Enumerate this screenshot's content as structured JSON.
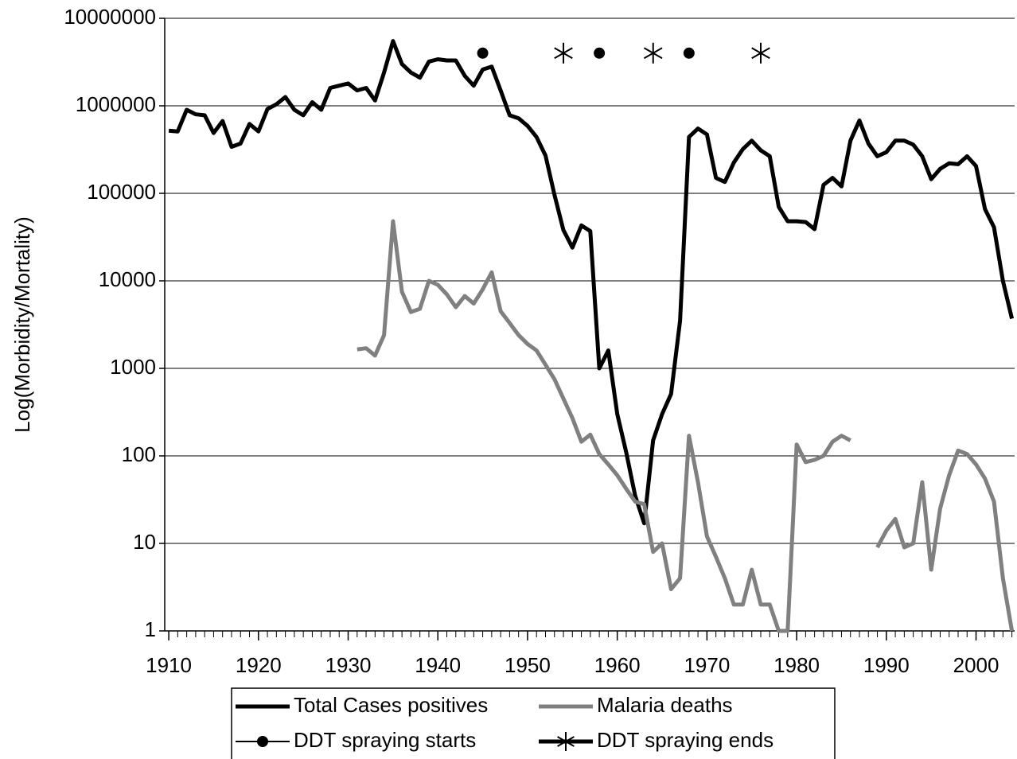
{
  "chart_data": {
    "type": "line",
    "y_label": "Log(Morbidity/Mortality)",
    "x": [
      1910,
      1911,
      1912,
      1913,
      1914,
      1915,
      1916,
      1917,
      1918,
      1919,
      1920,
      1921,
      1922,
      1923,
      1924,
      1925,
      1926,
      1927,
      1928,
      1929,
      1930,
      1931,
      1932,
      1933,
      1934,
      1935,
      1936,
      1937,
      1938,
      1939,
      1940,
      1941,
      1942,
      1943,
      1944,
      1945,
      1946,
      1947,
      1948,
      1949,
      1950,
      1951,
      1952,
      1953,
      1954,
      1955,
      1956,
      1957,
      1958,
      1959,
      1960,
      1961,
      1962,
      1963,
      1964,
      1965,
      1966,
      1967,
      1968,
      1969,
      1970,
      1971,
      1972,
      1973,
      1974,
      1975,
      1976,
      1977,
      1978,
      1979,
      1980,
      1981,
      1982,
      1983,
      1984,
      1985,
      1986,
      1987,
      1988,
      1989,
      1990,
      1991,
      1992,
      1993,
      1994,
      1995,
      1996,
      1997,
      1998,
      1999,
      2000,
      2001,
      2002,
      2003,
      2004
    ],
    "series": [
      {
        "name": "Total Cases positives",
        "color": "#000000",
        "values": [
          520000,
          510000,
          900000,
          800000,
          780000,
          490000,
          670000,
          340000,
          370000,
          620000,
          510000,
          920000,
          1040000,
          1260000,
          900000,
          780000,
          1100000,
          900000,
          1600000,
          1700000,
          1800000,
          1500000,
          1600000,
          1150000,
          2400000,
          5500000,
          3000000,
          2400000,
          2100000,
          3200000,
          3400000,
          3300000,
          3300000,
          2200000,
          1700000,
          2600000,
          2800000,
          1500000,
          780000,
          720000,
          590000,
          440000,
          270000,
          96000,
          38000,
          24000,
          43000,
          37000,
          1000,
          1600,
          300,
          110,
          35,
          17,
          150,
          300,
          510,
          3500,
          440000,
          550000,
          470000,
          150000,
          135000,
          225000,
          320000,
          400000,
          310000,
          265000,
          70000,
          48000,
          48000,
          47000,
          39000,
          125000,
          150000,
          120000,
          400000,
          680000,
          370000,
          265000,
          295000,
          400000,
          400000,
          360000,
          265000,
          145000,
          190000,
          220000,
          215000,
          265000,
          205000,
          66000,
          41000,
          10000,
          3700
        ]
      },
      {
        "name": "Malaria deaths",
        "color": "#808080",
        "values": [
          null,
          null,
          null,
          null,
          null,
          null,
          null,
          null,
          null,
          null,
          null,
          null,
          null,
          null,
          null,
          null,
          null,
          null,
          null,
          null,
          null,
          1650,
          1700,
          1400,
          2400,
          48000,
          7500,
          4400,
          4800,
          10000,
          9000,
          7000,
          5000,
          6700,
          5500,
          8000,
          12500,
          4500,
          3300,
          2400,
          1900,
          1600,
          1100,
          750,
          450,
          270,
          145,
          175,
          105,
          80,
          60,
          42,
          30,
          28,
          8,
          10,
          3,
          4,
          170,
          50,
          12,
          7,
          4,
          2,
          2,
          5,
          2,
          2,
          1,
          1,
          135,
          85,
          90,
          100,
          145,
          170,
          150,
          null,
          null,
          9,
          14,
          19,
          9,
          10,
          50,
          5,
          25,
          60,
          115,
          105,
          80,
          55,
          30,
          4,
          1
        ]
      },
      {
        "name": "DDT spraying starts",
        "color": "#000000",
        "marker": "circle",
        "x": [
          1945,
          1958,
          1968
        ],
        "values": [
          4000000,
          4000000,
          4000000
        ]
      },
      {
        "name": "DDT spraying ends",
        "color": "#000000",
        "marker": "asterisk",
        "x": [
          1954,
          1964,
          1976
        ],
        "values": [
          4000000,
          4000000,
          4000000
        ]
      }
    ],
    "xlim": [
      1909.55,
      2004.3
    ],
    "xticks": [
      1910,
      1920,
      1930,
      1940,
      1950,
      1960,
      1970,
      1980,
      1990,
      2000
    ],
    "ylim": [
      1,
      10000000
    ],
    "yticks": [
      1,
      10,
      100,
      1000,
      10000,
      100000,
      1000000,
      10000000
    ],
    "log_y": true,
    "grid": true,
    "legend": "bottom"
  }
}
